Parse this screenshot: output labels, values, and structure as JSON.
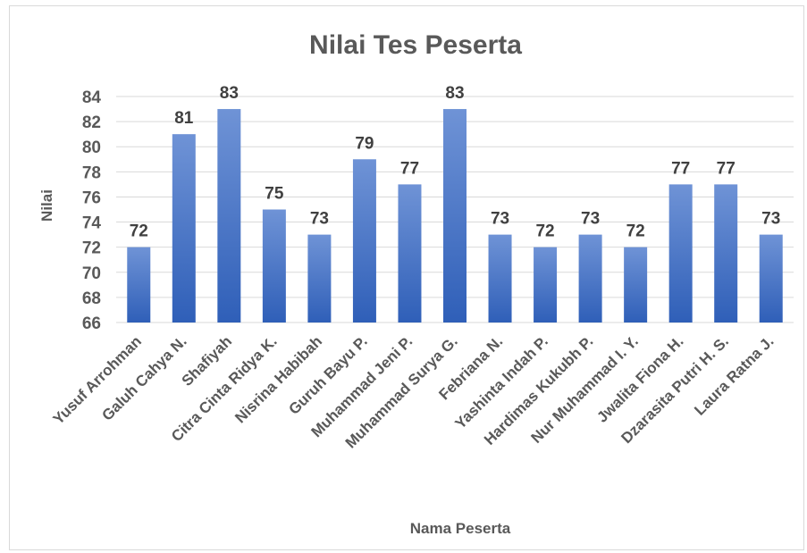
{
  "chart_data": {
    "type": "bar",
    "title": "Nilai Tes Peserta",
    "xlabel": "Nama Peserta",
    "ylabel": "Nilai",
    "ylim": [
      66,
      84
    ],
    "yticks": [
      66,
      68,
      70,
      72,
      74,
      76,
      78,
      80,
      82,
      84
    ],
    "grid": true,
    "legend": "none",
    "bar_color": "#4472c4",
    "categories": [
      "Yusuf Arrohman",
      "Galuh Cahya N.",
      "Shafiyah",
      "Citra Cinta Ridya K.",
      "Nisrina Habibah",
      "Guruh Bayu P.",
      "Muhammad Jeni P.",
      "Muhammad Surya G.",
      "Febriana N.",
      "Yashinta Indah P.",
      "Hardimas Kukubh P.",
      "Nur Muhammad I. Y.",
      "Jwalita Fiona H.",
      "Dzarasita Putri H. S.",
      "Laura Ratna J."
    ],
    "values": [
      72,
      81,
      83,
      75,
      73,
      79,
      77,
      83,
      73,
      72,
      73,
      72,
      77,
      77,
      73
    ]
  }
}
